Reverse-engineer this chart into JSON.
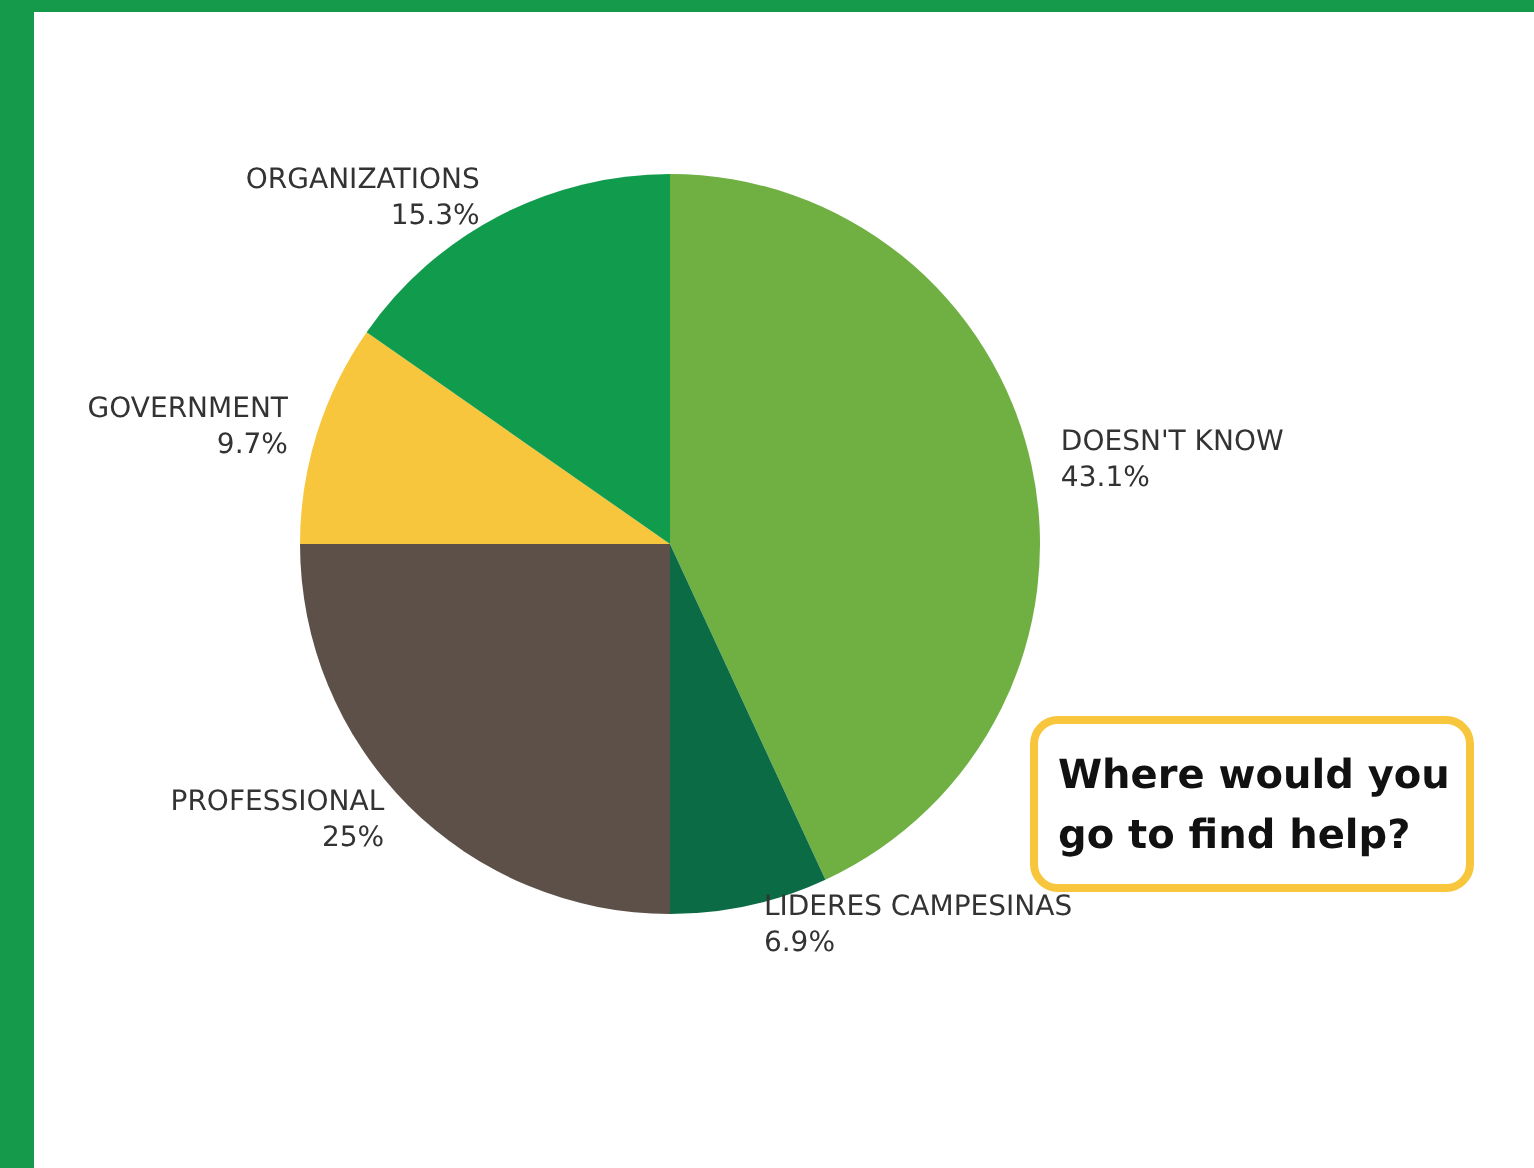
{
  "chart_data": {
    "type": "pie",
    "title": "Where would you\ngo to find help?",
    "categories": [
      "DOESN'T KNOW",
      "LIDERES CAMPESINAS",
      "PROFESSIONAL",
      "GOVERNMENT",
      "ORGANIZATIONS"
    ],
    "values": [
      43.1,
      6.9,
      25,
      9.7,
      15.3
    ],
    "value_labels": [
      "43.1%",
      "6.9%",
      "25%",
      "9.7%",
      "15.3%"
    ],
    "colors": [
      "#70b043",
      "#0a6b45",
      "#5c5048",
      "#f8c63c",
      "#119b4d"
    ],
    "legend": false
  }
}
